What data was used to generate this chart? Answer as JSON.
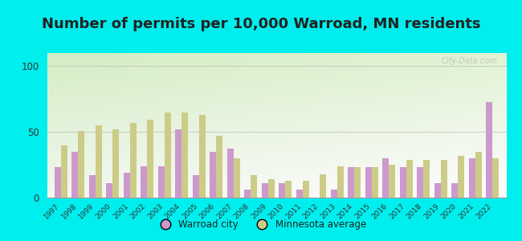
{
  "title": "Number of permits per 10,000 Warroad, MN residents",
  "years": [
    1997,
    1998,
    1999,
    2000,
    2001,
    2002,
    2003,
    2004,
    2005,
    2006,
    2007,
    2008,
    2009,
    2010,
    2011,
    2012,
    2013,
    2014,
    2015,
    2016,
    2017,
    2018,
    2019,
    2020,
    2021,
    2022
  ],
  "warroad": [
    23,
    35,
    17,
    11,
    19,
    24,
    24,
    52,
    17,
    35,
    37,
    6,
    11,
    11,
    6,
    0,
    6,
    23,
    23,
    30,
    23,
    23,
    11,
    11,
    30,
    73
  ],
  "mn_avg": [
    40,
    51,
    55,
    52,
    57,
    59,
    65,
    65,
    63,
    47,
    30,
    17,
    14,
    13,
    13,
    18,
    24,
    23,
    23,
    25,
    29,
    29,
    29,
    32,
    35,
    30
  ],
  "warroad_color": "#cc99cc",
  "mn_avg_color": "#cccc88",
  "background_color": "#00eeee",
  "ylim": [
    0,
    110
  ],
  "yticks": [
    0,
    50,
    100
  ],
  "title_fontsize": 13,
  "bar_width": 0.38,
  "watermark": "City-Data.com"
}
